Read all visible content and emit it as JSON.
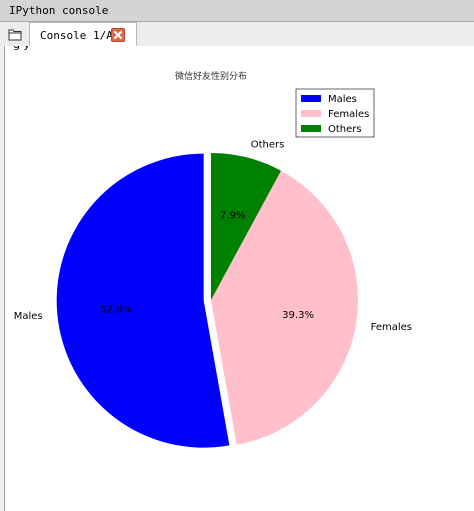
{
  "window": {
    "title": "IPython console"
  },
  "tab": {
    "label": "Console 1/A"
  },
  "output": {
    "partial_line": "g                       y"
  },
  "chart_data": {
    "type": "pie",
    "title": "微信好友性别分布",
    "slices": [
      {
        "label": "Males",
        "pct_label": "52.8%",
        "value": 52.8,
        "color": "#0000ff",
        "explode": 0.05
      },
      {
        "label": "Females",
        "pct_label": "39.3%",
        "value": 39.3,
        "color": "#ffc0cb",
        "explode": 0
      },
      {
        "label": "Others",
        "pct_label": "7.9%",
        "value": 7.9,
        "color": "#008000",
        "explode": 0
      }
    ],
    "start_angle_deg": 90,
    "direction": "counterclockwise",
    "legend": {
      "position": "upper-right",
      "entries": [
        {
          "label": "Males",
          "color": "#0000ff"
        },
        {
          "label": "Females",
          "color": "#ffc0cb"
        },
        {
          "label": "Others",
          "color": "#008000"
        }
      ]
    }
  }
}
